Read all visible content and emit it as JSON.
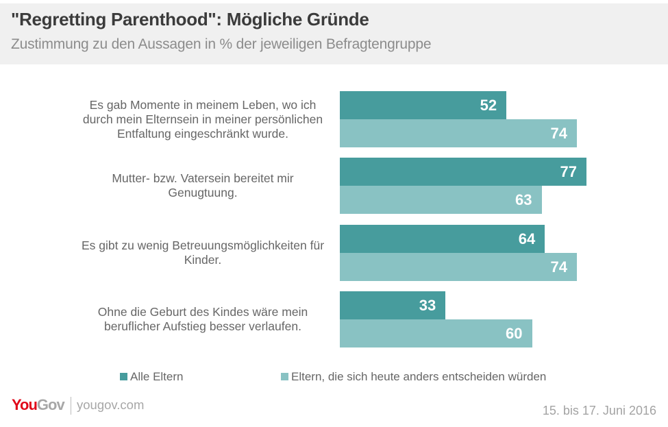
{
  "header": {
    "title": "\"Regretting Parenthood\": Mögliche Gründe",
    "subtitle": "Zustimmung zu den Aussagen in % der jeweiligen Befragtengruppe"
  },
  "footer": {
    "logo_you": "You",
    "logo_gov": "Gov",
    "site": "yougov.com",
    "date": "15. bis 17. Juni 2016"
  },
  "colors": {
    "alle_eltern": "#479c9d",
    "anders_entscheiden": "#89c2c3",
    "logo_red": "#e0081a"
  },
  "chart_data": {
    "type": "bar",
    "orientation": "horizontal",
    "title": "\"Regretting Parenthood\": Mögliche Gründe",
    "subtitle": "Zustimmung zu den Aussagen in % der jeweiligen Befragtengruppe",
    "xlabel": "",
    "ylabel": "",
    "xlim": [
      0,
      100
    ],
    "grid": false,
    "legend_position": "bottom",
    "categories": [
      "Es gab Momente in meinem Leben, wo ich durch mein Elternsein in meiner persönlichen Entfaltung eingeschränkt wurde.",
      "Mutter- bzw. Vatersein bereitet mir Genugtuung.",
      "Es gibt zu wenig Betreuungsmöglichkeiten für Kinder.",
      "Ohne die Geburt des Kindes wäre mein beruflicher Aufstieg besser verlaufen."
    ],
    "series": [
      {
        "name": "Alle Eltern",
        "color": "#479c9d",
        "values": [
          52,
          77,
          64,
          33
        ]
      },
      {
        "name": "Eltern, die sich heute anders entscheiden würden",
        "color": "#89c2c3",
        "values": [
          74,
          63,
          74,
          60
        ]
      }
    ]
  }
}
